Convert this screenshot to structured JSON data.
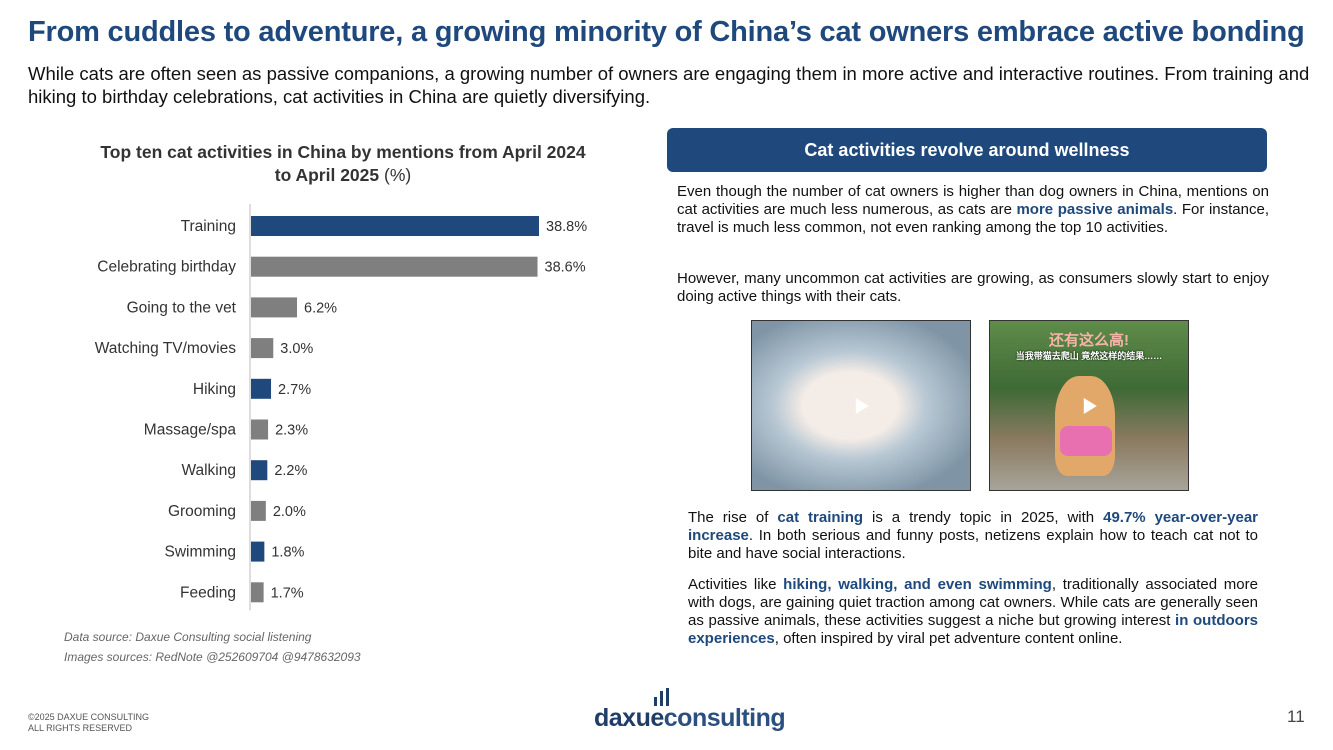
{
  "title": "From cuddles to adventure, a growing minority of China’s cat owners embrace active bonding",
  "subtitle": "While cats are often seen as passive companions, a growing number of owners are engaging them in more active and interactive routines. From training and hiking to birthday celebrations, cat activities in China are quietly diversifying.",
  "chart_data": {
    "type": "bar",
    "orientation": "horizontal",
    "title": "Top ten cat activities in China by mentions from April 2024 to April 2025",
    "title_unit": "(%)",
    "categories": [
      "Training",
      "Celebrating birthday",
      "Going to the vet",
      "Watching TV/movies",
      "Hiking",
      "Massage/spa",
      "Walking",
      "Grooming",
      "Swimming",
      "Feeding"
    ],
    "values": [
      38.8,
      38.6,
      6.2,
      3.0,
      2.7,
      2.3,
      2.2,
      2.0,
      1.8,
      1.7
    ],
    "labels": [
      "38.8%",
      "38.6%",
      "6.2%",
      "3.0%",
      "2.7%",
      "2.3%",
      "2.2%",
      "2.0%",
      "1.8%",
      "1.7%"
    ],
    "highlight": [
      true,
      false,
      false,
      false,
      true,
      false,
      true,
      false,
      true,
      false
    ],
    "colors": {
      "highlight": "#1f497d",
      "default": "#7f7f7f"
    },
    "xlim": [
      0,
      40
    ]
  },
  "sources": {
    "data": "Data source: Daxue Consulting social listening",
    "images": "Images sources: RedNote @252609704 @9478632093"
  },
  "panel": {
    "header": "Cat activities revolve around wellness",
    "p1": [
      "Even though the number of cat owners is higher than dog owners in China, mentions on cat activities are much less numerous, as cats are ",
      "more passive animals",
      ". For instance, travel is much less common, not even ranking among the top 10 activities."
    ],
    "p2": "However, many uncommon cat activities are growing, as consumers slowly start to enjoy doing active things with their cats.",
    "image_caption": "还有这么高!",
    "image_subcaption": "当我带猫去爬山 竟然这样的结果……",
    "p3": [
      "The rise of ",
      "cat training",
      " is a trendy topic in 2025, with ",
      "49.7% year-over-year increase",
      ". In both serious and  funny posts, netizens explain how to teach cat not to bite and have social interactions."
    ],
    "p4": [
      "Activities like ",
      "hiking, walking, and even swimming",
      ", traditionally associated more with dogs, are gaining quiet traction among cat owners. While cats are generally seen as passive animals, these activities suggest a niche but growing interest ",
      "in outdoors experiences",
      ", often inspired by viral pet adventure content online."
    ]
  },
  "footer": {
    "copyright1": "©2025 DAXUE CONSULTING",
    "copyright2": "ALL RIGHTS RESERVED",
    "logo_a": "daxue",
    "logo_b": "consulting",
    "page": "11"
  }
}
